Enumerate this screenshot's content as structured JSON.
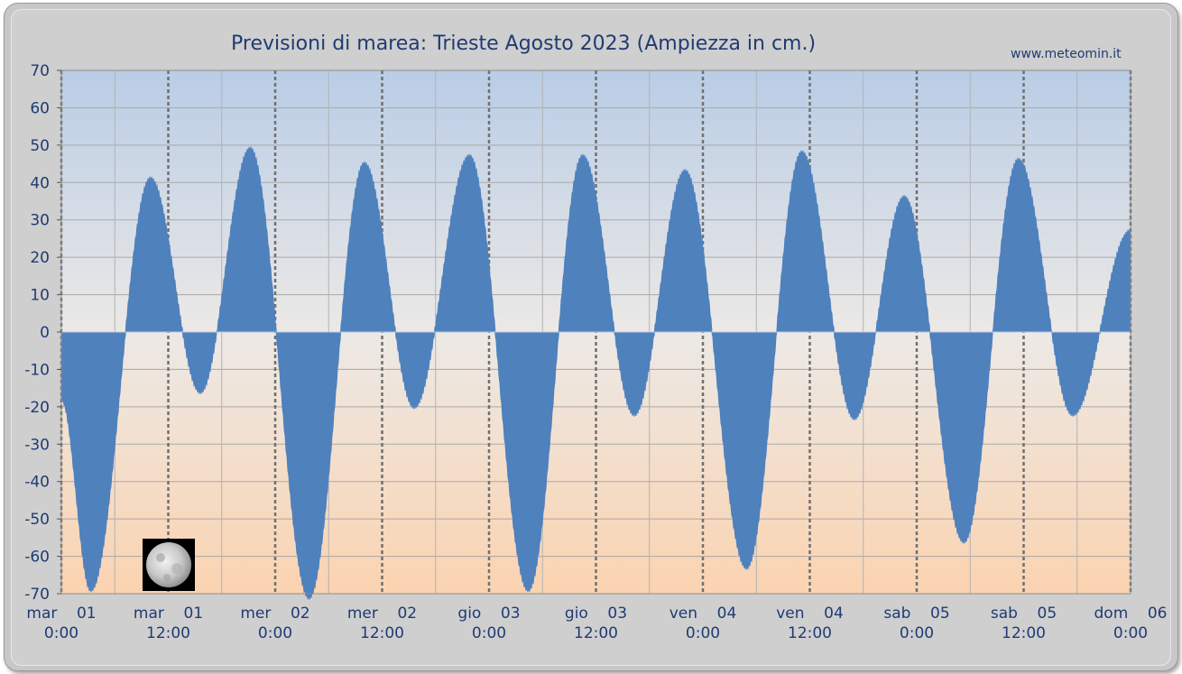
{
  "chart_data": {
    "type": "area",
    "title": "Previsioni di marea: Trieste Agosto 2023 (Ampiezza in cm.)",
    "source": "www.meteomin.it",
    "ylim": [
      -70,
      70
    ],
    "xlim": [
      0,
      120
    ],
    "x_unit": "hours since mar 01 0:00",
    "yticks": [
      "70",
      "60",
      "50",
      "40",
      "30",
      "20",
      "10",
      "0",
      "-10",
      "-20",
      "-30",
      "-40",
      "-50",
      "-60",
      "-70"
    ],
    "xticks": [
      {
        "top": "mar    01",
        "bottom": "0:00"
      },
      {
        "top": "mar    01",
        "bottom": "12:00"
      },
      {
        "top": "mer    02",
        "bottom": "0:00"
      },
      {
        "top": "mer    02",
        "bottom": "12:00"
      },
      {
        "top": "gio    03",
        "bottom": "0:00"
      },
      {
        "top": "gio    03",
        "bottom": "12:00"
      },
      {
        "top": "ven    04",
        "bottom": "0:00"
      },
      {
        "top": "ven    04",
        "bottom": "12:00"
      },
      {
        "top": "sab    05",
        "bottom": "0:00"
      },
      {
        "top": "sab    05",
        "bottom": "12:00"
      },
      {
        "top": "dom    06",
        "bottom": "0:00"
      }
    ],
    "grid": true,
    "fill_color": "#4f81bd",
    "background_top_color": "#b9cde6",
    "background_bottom_color": "#fbd3b0",
    "moon_phase_icon": "full-moon-icon",
    "extrema": [
      {
        "x": 0.0,
        "y": -18
      },
      {
        "x": 3.3,
        "y": -69
      },
      {
        "x": 10.0,
        "y": 41
      },
      {
        "x": 15.6,
        "y": -16
      },
      {
        "x": 21.2,
        "y": 49
      },
      {
        "x": 27.8,
        "y": -71
      },
      {
        "x": 34.0,
        "y": 45
      },
      {
        "x": 39.6,
        "y": -20
      },
      {
        "x": 45.8,
        "y": 47
      },
      {
        "x": 52.4,
        "y": -69
      },
      {
        "x": 58.5,
        "y": 47
      },
      {
        "x": 64.3,
        "y": -22
      },
      {
        "x": 70.0,
        "y": 43
      },
      {
        "x": 76.9,
        "y": -63
      },
      {
        "x": 83.1,
        "y": 48
      },
      {
        "x": 89.0,
        "y": -23
      },
      {
        "x": 94.6,
        "y": 36
      },
      {
        "x": 101.3,
        "y": -56
      },
      {
        "x": 107.4,
        "y": 46
      },
      {
        "x": 113.5,
        "y": -22
      },
      {
        "x": 120.0,
        "y": 27
      }
    ]
  }
}
